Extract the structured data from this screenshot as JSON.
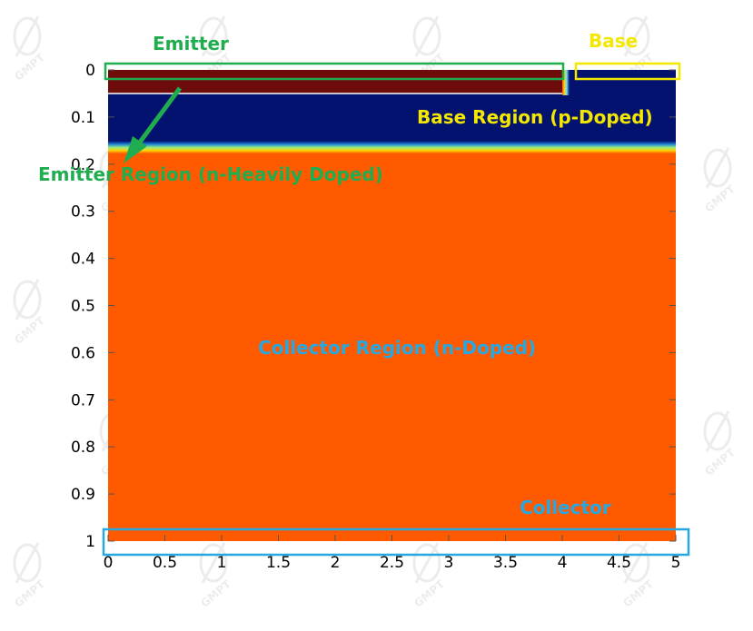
{
  "labels": {
    "emitter": "Emitter",
    "base": "Base",
    "base_region": "Base Region (p-Doped)",
    "emitter_region": "Emitter Region (n-Heavily Doped)",
    "collector_region": "Collector Region (n-Doped)",
    "collector": "Collector"
  },
  "watermark": "GMPT",
  "colors": {
    "emitter": "#6e0c0c",
    "base": "#03126e",
    "collector": "#ff5a00",
    "emitter_label": "#1fad4f",
    "base_label": "#f4e800",
    "collector_label": "#27a8e0",
    "tick_marks": "#555555"
  },
  "axes": {
    "y_ticks": [
      "0",
      "0.1",
      "0.2",
      "0.3",
      "0.4",
      "0.5",
      "0.6",
      "0.7",
      "0.8",
      "0.9",
      "1"
    ],
    "x_ticks": [
      "0",
      "0.5",
      "1",
      "1.5",
      "2",
      "2.5",
      "3",
      "3.5",
      "4",
      "4.5",
      "5"
    ]
  },
  "structure": {
    "x_range": [
      0,
      5
    ],
    "y_range": [
      0,
      1
    ],
    "emitter_x": [
      0,
      4
    ],
    "emitter_depth": 0.05,
    "base_depth": 0.17,
    "base_contact_x": [
      4.1,
      5
    ]
  }
}
